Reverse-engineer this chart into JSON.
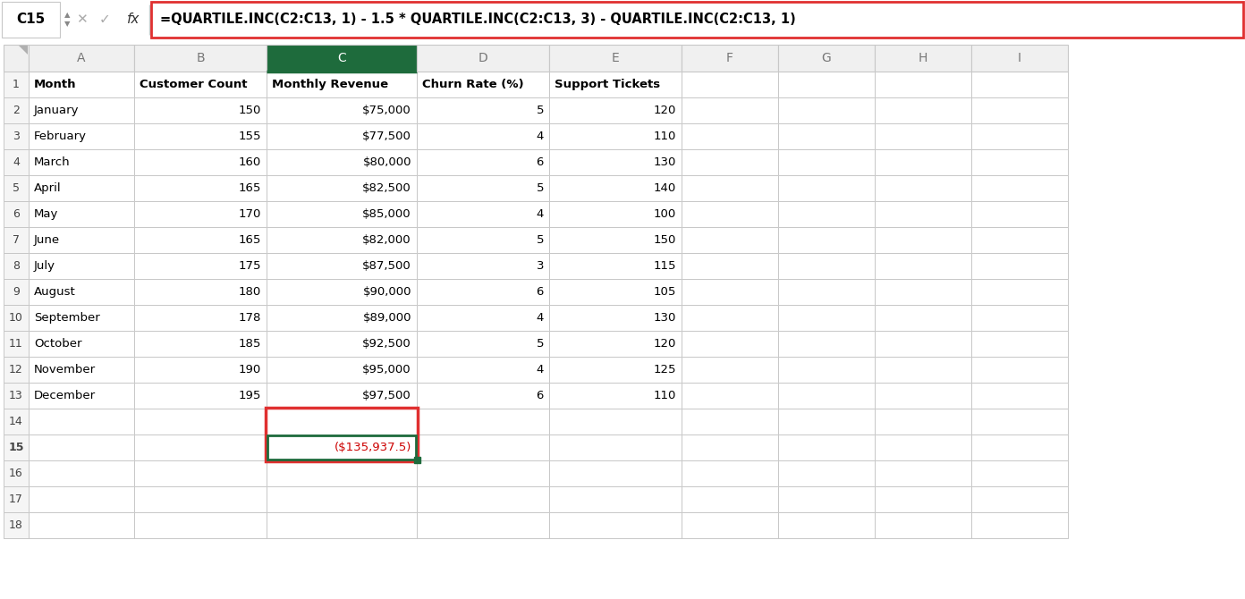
{
  "formula_bar_cell": "C15",
  "formula_bar_text": "=QUARTILE.INC(C2:C13, 1) - 1.5 * QUARTILE.INC(C2:C13, 3) - QUARTILE.INC(C2:C13, 1)",
  "col_headers": [
    "A",
    "B",
    "C",
    "D",
    "E",
    "F",
    "G",
    "H",
    "I"
  ],
  "row_headers": [
    "1",
    "2",
    "3",
    "4",
    "5",
    "6",
    "7",
    "8",
    "9",
    "10",
    "11",
    "12",
    "13",
    "14",
    "15",
    "16",
    "17",
    "18"
  ],
  "headers": [
    "Month",
    "Customer Count",
    "Monthly Revenue",
    "Churn Rate (%)",
    "Support Tickets"
  ],
  "data": [
    [
      "January",
      "150",
      "$75,000",
      "5",
      "120"
    ],
    [
      "February",
      "155",
      "$77,500",
      "4",
      "110"
    ],
    [
      "March",
      "160",
      "$80,000",
      "6",
      "130"
    ],
    [
      "April",
      "165",
      "$82,500",
      "5",
      "140"
    ],
    [
      "May",
      "170",
      "$85,000",
      "4",
      "100"
    ],
    [
      "June",
      "165",
      "$82,000",
      "5",
      "150"
    ],
    [
      "July",
      "175",
      "$87,500",
      "3",
      "115"
    ],
    [
      "August",
      "180",
      "$90,000",
      "6",
      "105"
    ],
    [
      "September",
      "178",
      "$89,000",
      "4",
      "130"
    ],
    [
      "October",
      "185",
      "$92,500",
      "5",
      "120"
    ],
    [
      "November",
      "190",
      "$95,000",
      "4",
      "125"
    ],
    [
      "December",
      "195",
      "$97,500",
      "6",
      "110"
    ]
  ],
  "result_cell": "($135,937.5)",
  "bg_color": "#ffffff",
  "grid_color": "#c8c8c8",
  "header_bg": "#f2f2f2",
  "selected_col_header_bg": "#1e6b3c",
  "selected_col_header_fg": "#ffffff",
  "formula_bar_border": "#e03030",
  "cell_highlight_border_outer": "#e03030",
  "cell_highlight_border_inner": "#1e6b3c",
  "result_text_color": "#cc0000",
  "col_header_text_color": "#777777",
  "col_C_text_color": "#2e7d32"
}
